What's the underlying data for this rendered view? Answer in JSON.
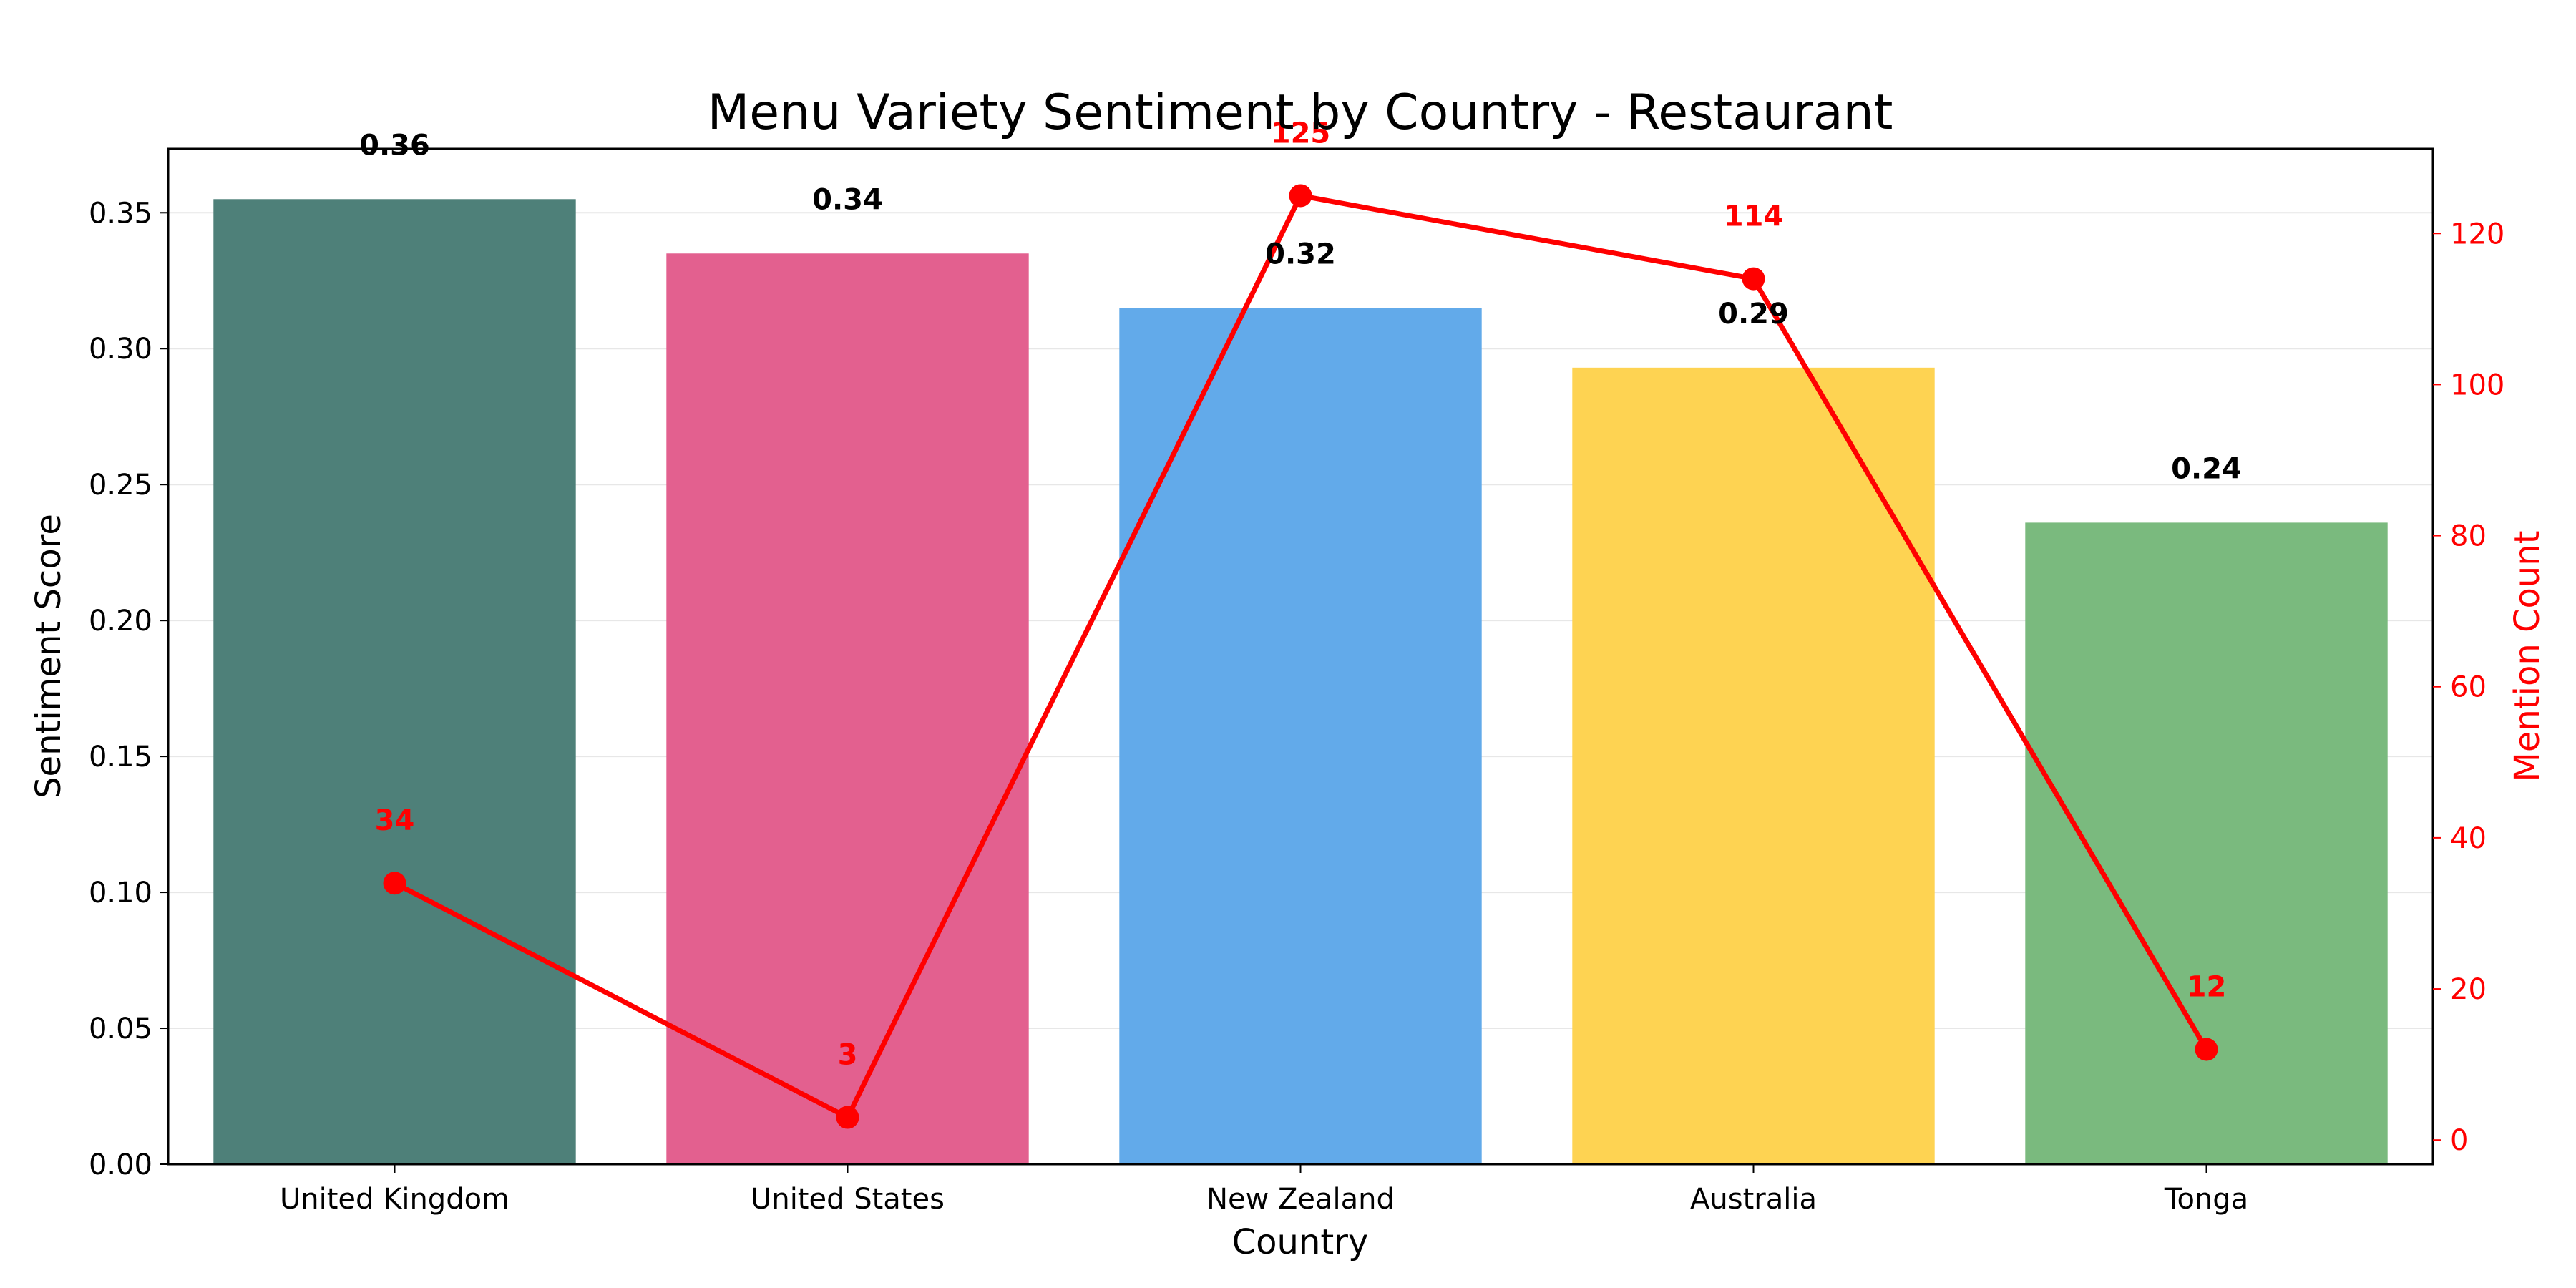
{
  "chart_data": {
    "type": "bar",
    "title": "Menu Variety Sentiment by Country - Restaurant",
    "xlabel": "Country",
    "ylabel": "Sentiment Score",
    "y2label": "Mention Count",
    "categories": [
      "United Kingdom",
      "United States",
      "New Zealand",
      "Australia",
      "Tonga"
    ],
    "series": [
      {
        "type": "bar",
        "axis": "left",
        "values": [
          0.355,
          0.335,
          0.315,
          0.293,
          0.236
        ],
        "labels": [
          "0.36",
          "0.34",
          "0.32",
          "0.29",
          "0.24"
        ],
        "colors": [
          "#4e8079",
          "#e3608f",
          "#62aaea",
          "#fed352",
          "#7aba7e"
        ]
      },
      {
        "type": "line",
        "axis": "right",
        "values": [
          34,
          3,
          125,
          114,
          12
        ],
        "labels": [
          "34",
          "3",
          "125",
          "114",
          "12"
        ],
        "color": "#ff0000"
      }
    ],
    "ylim": [
      0,
      0.3735
    ],
    "y2lim": [
      -3.2,
      131.2
    ],
    "yticks": [
      "0.00",
      "0.05",
      "0.10",
      "0.15",
      "0.20",
      "0.25",
      "0.30",
      "0.35"
    ],
    "y2ticks": [
      "0",
      "20",
      "40",
      "60",
      "80",
      "100",
      "120"
    ],
    "grid": true,
    "legend": "none"
  }
}
